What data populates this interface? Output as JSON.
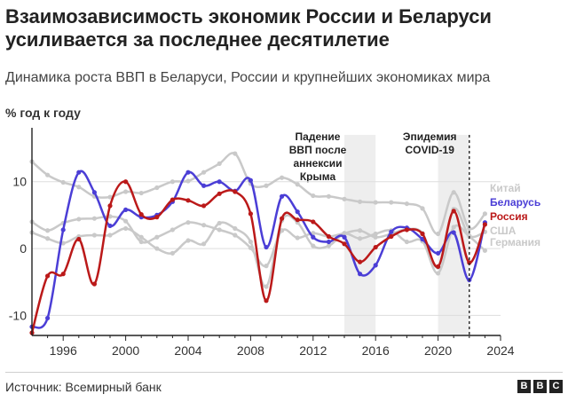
{
  "header": {
    "title": "Взаимозависимость экономик России и Беларуси усиливается за последнее десятилетие",
    "subtitle": "Динамика роста ВВП в Беларуси, России и крупнейших экономиках мира"
  },
  "footer": {
    "source": "Источник: Всемирный банк",
    "logo": [
      "B",
      "B",
      "C"
    ]
  },
  "colors": {
    "belarus": "#4b3ed6",
    "russia": "#bb1919",
    "other": "#c9c9c9",
    "band": "#eeeeee",
    "axis": "#222222",
    "grid": "#dddddd"
  },
  "chart_data": {
    "type": "line",
    "ylabel": "% год к году",
    "xlim": [
      1994,
      2024
    ],
    "ylim": [
      -13,
      17
    ],
    "xticks": [
      1996,
      2000,
      2004,
      2008,
      2012,
      2016,
      2020,
      2024
    ],
    "yticks": [
      -10,
      0,
      10
    ],
    "grid": "horizontal",
    "legend": "right",
    "x": [
      1994,
      1995,
      1996,
      1997,
      1998,
      1999,
      2000,
      2001,
      2002,
      2003,
      2004,
      2005,
      2006,
      2007,
      2008,
      2009,
      2010,
      2011,
      2012,
      2013,
      2014,
      2015,
      2016,
      2017,
      2018,
      2019,
      2020,
      2021,
      2022,
      2023
    ],
    "series": [
      {
        "name": "Китай",
        "color_key": "other",
        "values": [
          13.0,
          11.0,
          9.9,
          9.2,
          7.8,
          7.7,
          8.5,
          8.3,
          9.1,
          10.0,
          10.1,
          11.4,
          12.7,
          14.2,
          9.7,
          9.4,
          10.6,
          9.6,
          7.9,
          7.8,
          7.4,
          7.0,
          6.9,
          6.9,
          6.7,
          6.0,
          2.2,
          8.4,
          3.0,
          5.2
        ]
      },
      {
        "name": "США",
        "color_key": "other",
        "values": [
          4.0,
          2.7,
          3.8,
          4.4,
          4.5,
          4.8,
          4.1,
          1.0,
          1.7,
          2.8,
          3.9,
          3.5,
          2.8,
          2.0,
          0.1,
          -2.6,
          2.7,
          1.6,
          2.3,
          1.8,
          2.3,
          2.7,
          1.7,
          2.2,
          2.9,
          2.3,
          -2.8,
          5.9,
          1.9,
          2.5
        ]
      },
      {
        "name": "Германия",
        "color_key": "other",
        "values": [
          2.4,
          1.5,
          0.8,
          1.8,
          2.0,
          2.0,
          3.0,
          1.7,
          0.0,
          -0.7,
          1.2,
          0.7,
          3.8,
          3.0,
          1.0,
          -5.7,
          4.2,
          3.9,
          0.4,
          0.4,
          2.2,
          1.5,
          2.2,
          2.7,
          1.0,
          1.1,
          -3.7,
          3.2,
          1.8,
          -0.3
        ]
      },
      {
        "name": "Беларусь",
        "color_key": "belarus",
        "values": [
          -11.7,
          -10.4,
          2.8,
          11.4,
          8.4,
          3.4,
          5.8,
          4.7,
          5.0,
          7.0,
          11.4,
          9.4,
          10.0,
          8.6,
          10.2,
          0.2,
          7.8,
          5.5,
          1.7,
          1.0,
          1.7,
          -3.8,
          -2.5,
          2.5,
          3.1,
          1.4,
          -0.7,
          2.4,
          -4.7,
          3.9
        ]
      },
      {
        "name": "Россия",
        "color_key": "russia",
        "values": [
          -12.6,
          -4.1,
          -3.8,
          1.4,
          -5.3,
          6.4,
          10.0,
          5.1,
          4.7,
          7.3,
          7.2,
          6.4,
          8.2,
          8.5,
          5.2,
          -7.8,
          4.5,
          4.3,
          4.0,
          1.8,
          0.7,
          -2.0,
          0.2,
          1.8,
          2.8,
          2.2,
          -2.7,
          5.6,
          -2.1,
          3.6
        ]
      }
    ],
    "bands": [
      {
        "from": 2014,
        "to": 2016,
        "label": [
          "Падение",
          "ВВП после",
          "аннексии",
          "Крыма"
        ]
      },
      {
        "from": 2020,
        "to": 2022,
        "label": [
          "Эпидемия",
          "COVID-19"
        ]
      }
    ],
    "marker_line": {
      "x": 2022
    }
  }
}
